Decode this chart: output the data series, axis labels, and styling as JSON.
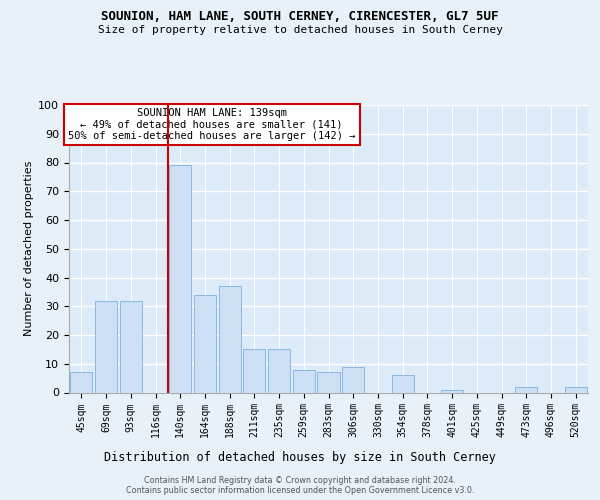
{
  "title1": "SOUNION, HAM LANE, SOUTH CERNEY, CIRENCESTER, GL7 5UF",
  "title2": "Size of property relative to detached houses in South Cerney",
  "xlabel": "Distribution of detached houses by size in South Cerney",
  "ylabel": "Number of detached properties",
  "footer1": "Contains HM Land Registry data © Crown copyright and database right 2024.",
  "footer2": "Contains public sector information licensed under the Open Government Licence v3.0.",
  "annotation_title": "SOUNION HAM LANE: 139sqm",
  "annotation_line1": "← 49% of detached houses are smaller (141)",
  "annotation_line2": "50% of semi-detached houses are larger (142) →",
  "bar_color": "#ccdff5",
  "bar_edge_color": "#89b8e0",
  "bg_color": "#ddeaf7",
  "fig_bg_color": "#e8f0f8",
  "grid_color": "#ffffff",
  "vline_color": "#cc0000",
  "vline_x": 3.5,
  "categories": [
    "45sqm",
    "69sqm",
    "93sqm",
    "116sqm",
    "140sqm",
    "164sqm",
    "188sqm",
    "211sqm",
    "235sqm",
    "259sqm",
    "283sqm",
    "306sqm",
    "330sqm",
    "354sqm",
    "378sqm",
    "401sqm",
    "425sqm",
    "449sqm",
    "473sqm",
    "496sqm",
    "520sqm"
  ],
  "values": [
    7,
    32,
    32,
    0,
    79,
    34,
    37,
    15,
    15,
    8,
    7,
    9,
    0,
    6,
    0,
    1,
    0,
    0,
    2,
    0,
    2
  ],
  "ylim": [
    0,
    100
  ],
  "yticks": [
    0,
    10,
    20,
    30,
    40,
    50,
    60,
    70,
    80,
    90,
    100
  ]
}
